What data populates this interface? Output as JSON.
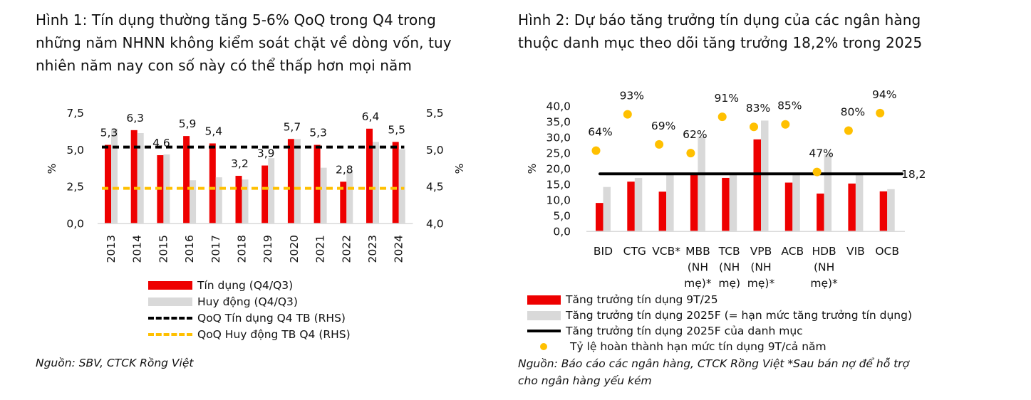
{
  "figure1": {
    "title_lines": [
      "Hình 1: Tín dụng thường tăng 5-6% QoQ trong Q4 trong",
      "những năm NHNN không kiểm soát chặt về dòng vốn, tuy",
      "nhiên năm nay con số này có thể thấp hơn mọi năm"
    ],
    "source": "Nguồn: SBV, CTCK Rồng Việt",
    "legend": [
      "Tín dụng (Q4/Q3)",
      "Huy động (Q4/Q3)",
      "QoQ Tín dụng Q4 TB (RHS)",
      "QoQ Huy động TB Q4 (RHS)"
    ]
  },
  "figure2": {
    "title_lines": [
      "Hình 2: Dự báo tăng trưởng tín dụng của các ngân hàng",
      "thuộc danh mục theo dõi tăng trưởng 18,2% trong 2025"
    ],
    "source_lines": [
      "Nguồn: Báo cáo các ngân hàng, CTCK Rồng Việt *Sau bán nợ để hỗ trợ",
      "cho ngân hàng yếu kém"
    ],
    "legend": [
      "Tăng trưởng tín dụng 9T/25",
      "Tăng trưởng tín dụng 2025F (= hạn mức tăng trưởng tín dụng)",
      "Tăng trưởng tín dụng 2025F của danh mục",
      "Tỷ lệ hoàn thành hạn mức tín dụng 9T/cả năm"
    ]
  },
  "colors": {
    "red": "#EE0000",
    "gray": "#D9D9D9",
    "black": "#000000",
    "orange": "#FFC000"
  },
  "chart_data": [
    {
      "type": "bar",
      "categories": [
        "2013",
        "2014",
        "2015",
        "2016",
        "2017",
        "2018",
        "2019",
        "2020",
        "2021",
        "2022",
        "2023",
        "2024"
      ],
      "series": [
        {
          "name": "Tín dụng (Q4/Q3)",
          "axis": "left",
          "values": [
            5.3,
            6.3,
            4.6,
            5.9,
            5.4,
            3.2,
            3.9,
            5.7,
            5.3,
            2.8,
            6.4,
            5.5
          ],
          "labels": [
            "5,3",
            "6,3",
            "4,6",
            "5,9",
            "5,4",
            "3,2",
            "3,9",
            "5,7",
            "5,3",
            "2,8",
            "6,4",
            "5,5"
          ]
        },
        {
          "name": "Huy động (Q4/Q3)",
          "axis": "left",
          "values": [
            6.4,
            6.1,
            4.65,
            2.9,
            3.1,
            2.95,
            4.4,
            5.7,
            3.75,
            3.5,
            5.5,
            5.0
          ]
        },
        {
          "name": "QoQ Tín dụng Q4 TB (RHS)",
          "type": "line",
          "style": "dashed",
          "axis": "right",
          "value": 5.03
        },
        {
          "name": "QoQ Huy động TB Q4 (RHS)",
          "type": "line",
          "style": "dashed",
          "axis": "right",
          "value": 4.47
        }
      ],
      "ylabel": "%",
      "ylim": [
        0,
        7.5
      ],
      "yticks": [
        "0,0",
        "2,5",
        "5,0",
        "7,5"
      ],
      "y2label": "%",
      "y2lim": [
        4.0,
        5.5
      ],
      "y2ticks": [
        "4,0",
        "4,5",
        "5,0",
        "5,5"
      ],
      "legend_position": "bottom",
      "grid": false
    },
    {
      "type": "bar",
      "categories": [
        [
          "BID"
        ],
        [
          "CTG"
        ],
        [
          "VCB*"
        ],
        [
          "MBB",
          "(NH",
          "mẹ)*"
        ],
        [
          "TCB",
          "(NH",
          "mẹ)"
        ],
        [
          "VPB",
          "(NH",
          "mẹ)*"
        ],
        [
          "ACB"
        ],
        [
          "HDB",
          "(NH",
          "mẹ)*"
        ],
        [
          "VIB"
        ],
        [
          "OCB"
        ]
      ],
      "series": [
        {
          "name": "Tăng trưởng tín dụng 9T/25",
          "values": [
            8.9,
            15.7,
            12.5,
            18.3,
            16.9,
            29.2,
            15.4,
            11.9,
            15.1,
            12.6
          ]
        },
        {
          "name": "Tăng trưởng tín dụng 2025F (= hạn mức tăng trưởng tín dụng)",
          "values": [
            14.0,
            16.9,
            18.4,
            30.1,
            18.4,
            35.2,
            18.4,
            24.5,
            18.4,
            13.3
          ]
        },
        {
          "name": "Tăng trưởng tín dụng 2025F của danh mục",
          "type": "line",
          "value": 18.2,
          "label": "18,2"
        },
        {
          "name": "Tỷ lệ hoàn thành hạn mức tín dụng 9T/cả năm",
          "type": "scatter",
          "axis": "secondary-hidden",
          "ylim": [
            0,
            100
          ],
          "values": [
            64,
            93,
            69,
            62,
            91,
            83,
            85,
            47,
            80,
            94
          ],
          "labels": [
            "64%",
            "93%",
            "69%",
            "62%",
            "91%",
            "83%",
            "85%",
            "47%",
            "80%",
            "94%"
          ]
        }
      ],
      "ylabel": "%",
      "ylim": [
        0,
        40
      ],
      "yticks": [
        "0,0",
        "5,0",
        "10,0",
        "15,0",
        "20,0",
        "25,0",
        "30,0",
        "35,0",
        "40,0"
      ],
      "legend_position": "bottom",
      "grid": false
    }
  ]
}
